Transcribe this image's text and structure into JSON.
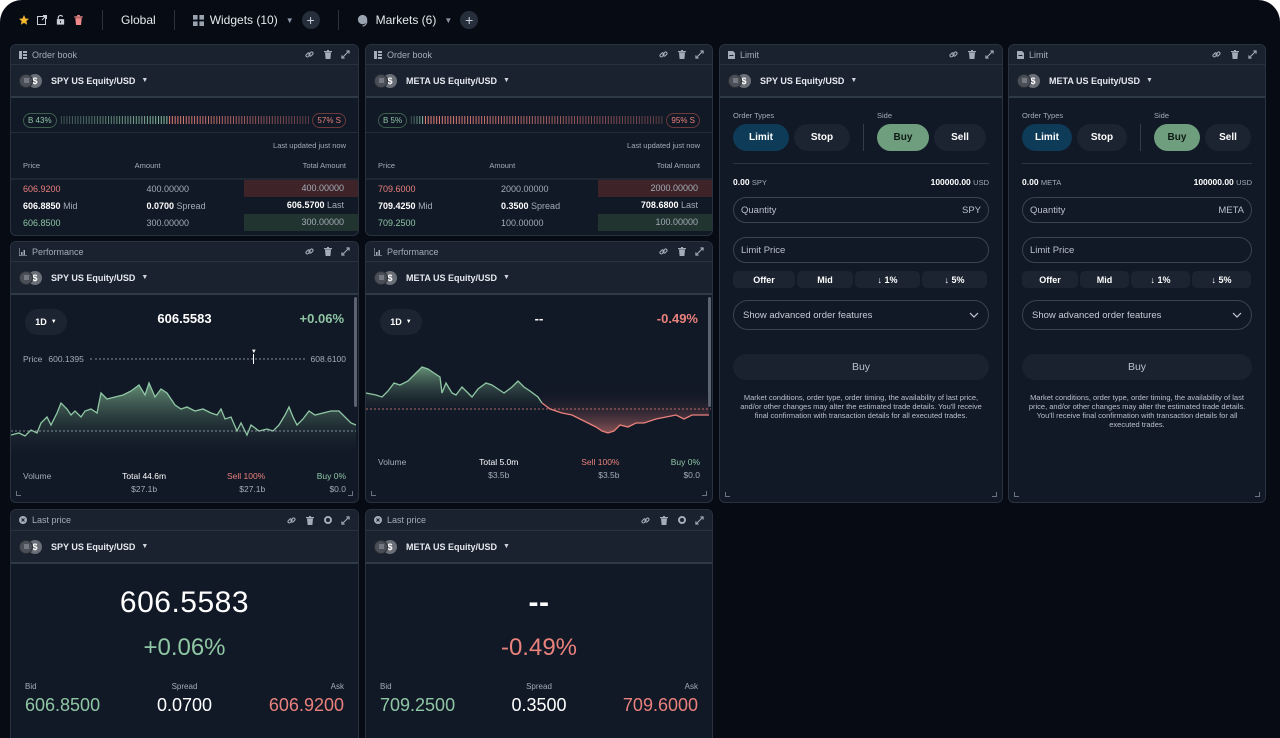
{
  "topbar": {
    "global_label": "Global",
    "widgets_label": "Widgets (10)",
    "markets_label": "Markets (6)",
    "add_symbol": "+"
  },
  "colors": {
    "background": "#060b14",
    "panel": "#111826",
    "panel_header": "#1a2230",
    "positive": "#8fc7a4",
    "negative": "#e9817c",
    "accent_blue": "#0e3b57",
    "accent_green": "#6f9e7f",
    "star": "#f5b82e",
    "trash": "#f08a8a"
  },
  "orderbooks": [
    {
      "title": "Order book",
      "asset": "SPY US Equity/USD",
      "buy_pct": "B 43%",
      "sell_pct": "57% S",
      "buy_ratio": 0.43,
      "last_updated": "Last updated just now",
      "cols": [
        "Price",
        "Amount",
        "Total Amount"
      ],
      "ask": {
        "price": "606.9200",
        "amount": "400.00000",
        "total": "400.00000"
      },
      "mid": {
        "price": "606.8850",
        "price_label": "Mid",
        "spread": "0.0700",
        "spread_label": "Spread",
        "last": "606.5700",
        "last_label": "Last"
      },
      "bid": {
        "price": "606.8500",
        "amount": "300.00000",
        "total": "300.00000"
      }
    },
    {
      "title": "Order book",
      "asset": "META US Equity/USD",
      "buy_pct": "B 5%",
      "sell_pct": "95% S",
      "buy_ratio": 0.05,
      "last_updated": "Last updated just now",
      "cols": [
        "Price",
        "Amount",
        "Total Amount"
      ],
      "ask": {
        "price": "709.6000",
        "amount": "2000.00000",
        "total": "2000.00000"
      },
      "mid": {
        "price": "709.4250",
        "price_label": "Mid",
        "spread": "0.3500",
        "spread_label": "Spread",
        "last": "708.6800",
        "last_label": "Last"
      },
      "bid": {
        "price": "709.2500",
        "amount": "100.00000",
        "total": "100.00000"
      }
    }
  ],
  "performance": [
    {
      "title": "Performance",
      "asset": "SPY US Equity/USD",
      "timeframe": "1D",
      "price": "606.5583",
      "change": "+0.06%",
      "range_label": "Price",
      "range_low": "600.1395",
      "range_high": "608.6100",
      "volume_label": "Volume",
      "total": "Total 44.6m",
      "total_usd": "$27.1b",
      "sell": "Sell 100%",
      "sell_usd": "$27.1b",
      "buy": "Buy 0%",
      "buy_usd": "$0.0"
    },
    {
      "title": "Performance",
      "asset": "META US Equity/USD",
      "timeframe": "1D",
      "price": "--",
      "change": "-0.49%",
      "volume_label": "Volume",
      "total": "Total 5.0m",
      "total_usd": "$3.5b",
      "sell": "Sell 100%",
      "sell_usd": "$3.5b",
      "buy": "Buy 0%",
      "buy_usd": "$0.0"
    }
  ],
  "limits": [
    {
      "title": "Limit",
      "asset": "SPY US Equity/USD",
      "order_types_label": "Order Types",
      "side_label": "Side",
      "limit": "Limit",
      "stop": "Stop",
      "buy": "Buy",
      "sell": "Sell",
      "qty_balance": "0.00",
      "qty_unit": "SPY",
      "usd_balance": "100000.00",
      "usd_unit": "USD",
      "quantity_placeholder": "Quantity",
      "quantity_unit": "SPY",
      "limit_price_placeholder": "Limit Price",
      "quick": [
        "Offer",
        "Mid",
        "↓ 1%",
        "↓ 5%"
      ],
      "advanced": "Show advanced order features",
      "submit": "Buy",
      "disclaimer": "Market conditions, order type, order timing, the availability of last price, and/or other changes may alter the estimated trade details. You'll receive final confirmation with transaction details for all executed trades."
    },
    {
      "title": "Limit",
      "asset": "META US Equity/USD",
      "order_types_label": "Order Types",
      "side_label": "Side",
      "limit": "Limit",
      "stop": "Stop",
      "buy": "Buy",
      "sell": "Sell",
      "qty_balance": "0.00",
      "qty_unit": "META",
      "usd_balance": "100000.00",
      "usd_unit": "USD",
      "quantity_placeholder": "Quantity",
      "quantity_unit": "META",
      "limit_price_placeholder": "Limit Price",
      "quick": [
        "Offer",
        "Mid",
        "↓ 1%",
        "↓ 5%"
      ],
      "advanced": "Show advanced order features",
      "submit": "Buy",
      "disclaimer": "Market conditions, order type, order timing, the availability of last price, and/or other changes may alter the estimated trade details. You'll receive final confirmation with transaction details for all executed trades."
    }
  ],
  "lastprices": [
    {
      "title": "Last price",
      "asset": "SPY US Equity/USD",
      "price": "606.5583",
      "change": "+0.06%",
      "bid_label": "Bid",
      "spread_label": "Spread",
      "ask_label": "Ask",
      "bid": "606.8500",
      "spread": "0.0700",
      "ask": "606.9200"
    },
    {
      "title": "Last price",
      "asset": "META US Equity/USD",
      "price": "--",
      "change": "-0.49%",
      "bid_label": "Bid",
      "spread_label": "Spread",
      "ask_label": "Ask",
      "bid": "709.2500",
      "spread": "0.3500",
      "ask": "709.6000"
    }
  ]
}
